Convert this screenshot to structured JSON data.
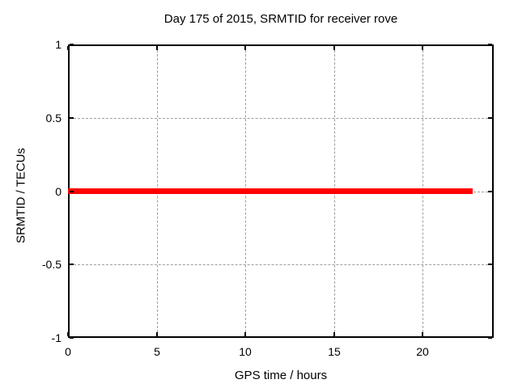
{
  "chart_data": {
    "type": "line",
    "title": "Day 175 of 2015, SRMTID for receiver rove",
    "xlabel": "GPS time / hours",
    "ylabel": "SRMTID / TECUs",
    "xlim": [
      0,
      24
    ],
    "ylim": [
      -1,
      1
    ],
    "xtick_values": [
      0,
      5,
      10,
      15,
      20
    ],
    "xtick_labels": [
      "0",
      "5",
      "10",
      "15",
      "20"
    ],
    "ytick_values": [
      -1,
      -0.5,
      0,
      0.5,
      1
    ],
    "ytick_labels": [
      "-1",
      "-0.5",
      "0",
      "0.5",
      "1"
    ],
    "grid": true,
    "legend": "none",
    "series": [
      {
        "name": "SRMTID",
        "color": "#ff0000",
        "x_start": 0,
        "x_end": 22.8,
        "y_value": 0,
        "description": "constant zero line from 0 to ~22.8 GPS hours"
      }
    ],
    "colors": {
      "line": "#ff0000",
      "grid": "#9e9e9e",
      "axis": "#000000",
      "background": "#ffffff"
    }
  }
}
